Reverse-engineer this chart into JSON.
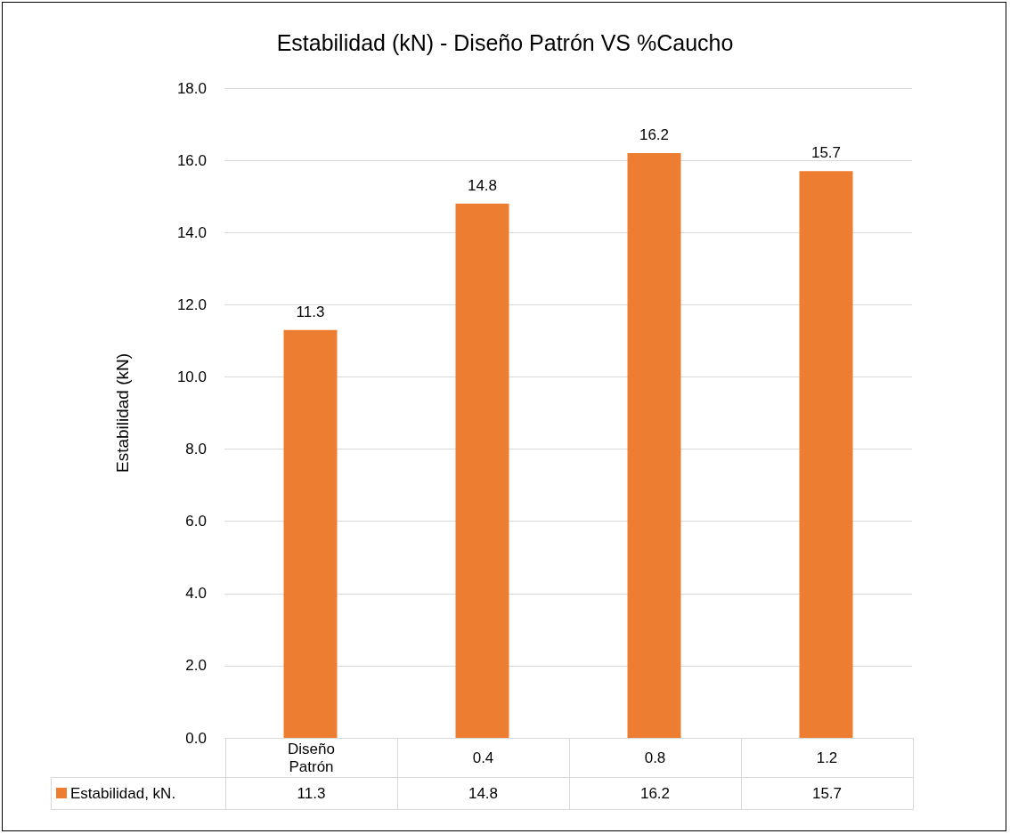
{
  "chart_data": {
    "type": "bar",
    "title": "Estabilidad (kN) - Diseño Patrón VS %Caucho",
    "ylabel": "Estabilidad (kN)",
    "categories": [
      "Diseño Patrón",
      "0.4",
      "0.8",
      "1.2"
    ],
    "series": [
      {
        "name": "Estabilidad, kN.",
        "color": "#ed7d31",
        "values": [
          11.3,
          14.8,
          16.2,
          15.7
        ],
        "value_labels": [
          "11.3",
          "14.8",
          "16.2",
          "15.7"
        ]
      }
    ],
    "ylim": [
      0,
      18
    ],
    "yticks": [
      {
        "value": 0,
        "label": "0.0"
      },
      {
        "value": 2,
        "label": "2.0"
      },
      {
        "value": 4,
        "label": "4.0"
      },
      {
        "value": 6,
        "label": "6.0"
      },
      {
        "value": 8,
        "label": "8.0"
      },
      {
        "value": 10,
        "label": "10.0"
      },
      {
        "value": 12,
        "label": "12.0"
      },
      {
        "value": 14,
        "label": "14.0"
      },
      {
        "value": 16,
        "label": "16.0"
      },
      {
        "value": 18,
        "label": "18.0"
      }
    ],
    "annotations": [
      "11.3",
      "14.8",
      "16.2",
      "15.7"
    ],
    "grid": "y",
    "data_labels": true,
    "legend": "bottom"
  }
}
